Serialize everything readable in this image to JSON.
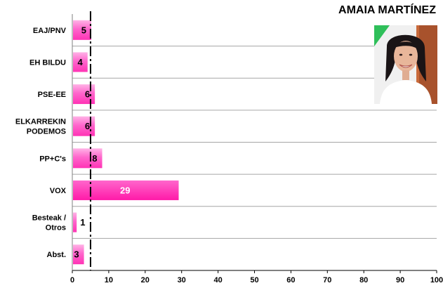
{
  "person": {
    "name": "AMAIA MARTÍNEZ",
    "photo_icon": "candidate-portrait-photo"
  },
  "chart_data": {
    "type": "bar",
    "orientation": "horizontal",
    "categories": [
      "EAJ/PNV",
      "EH BILDU",
      "PSE-EE",
      "ELKARREKIN\nPODEMOS",
      "PP+C's",
      "VOX",
      "Besteak /\nOtros",
      "Abst."
    ],
    "values": [
      5,
      4,
      6,
      6,
      8,
      29,
      1,
      3
    ],
    "xlim": [
      0,
      100
    ],
    "xticks": [
      0,
      10,
      20,
      30,
      40,
      50,
      60,
      70,
      80,
      90,
      100
    ],
    "reference_line": 5,
    "grid": "horizontal separators",
    "colors": {
      "bar": "#ff66cc",
      "bar_highlight": "#ff33bb",
      "reference": "#000000",
      "value_inside": "#ffffff",
      "value_outside": "#000000"
    }
  }
}
